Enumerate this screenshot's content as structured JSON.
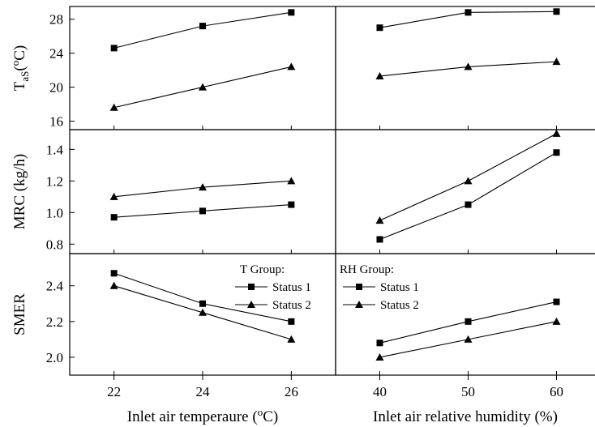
{
  "chart_data": [
    {
      "type": "line",
      "panel": "top-left",
      "ylabel": "T_aS(°C)",
      "x": [
        22,
        24,
        26
      ],
      "xlim": [
        21,
        27
      ],
      "ylim": [
        15,
        29.5
      ],
      "yticks": [
        16,
        20,
        24,
        28
      ],
      "series": [
        {
          "marker": "square",
          "values": [
            24.6,
            27.2,
            28.8
          ]
        },
        {
          "marker": "triangle",
          "values": [
            17.6,
            20.0,
            22.4
          ]
        }
      ]
    },
    {
      "type": "line",
      "panel": "top-right",
      "x": [
        40,
        50,
        60
      ],
      "xlim": [
        35,
        65
      ],
      "ylim": [
        15,
        29.5
      ],
      "series": [
        {
          "marker": "square",
          "values": [
            27.0,
            28.8,
            28.9
          ]
        },
        {
          "marker": "triangle",
          "values": [
            21.3,
            22.4,
            23.0
          ]
        }
      ]
    },
    {
      "type": "line",
      "panel": "middle-left",
      "ylabel": "MRC (kg/h)",
      "x": [
        22,
        24,
        26
      ],
      "xlim": [
        21,
        27
      ],
      "ylim": [
        0.74,
        1.525
      ],
      "yticks": [
        0.8,
        1.0,
        1.2,
        1.4
      ],
      "series": [
        {
          "marker": "square",
          "values": [
            0.97,
            1.01,
            1.05
          ]
        },
        {
          "marker": "triangle",
          "values": [
            1.1,
            1.16,
            1.2
          ]
        }
      ]
    },
    {
      "type": "line",
      "panel": "middle-right",
      "x": [
        40,
        50,
        60
      ],
      "xlim": [
        35,
        65
      ],
      "ylim": [
        0.74,
        1.525
      ],
      "series": [
        {
          "marker": "square",
          "values": [
            0.83,
            1.05,
            1.38
          ]
        },
        {
          "marker": "triangle",
          "values": [
            0.95,
            1.2,
            1.5
          ]
        }
      ]
    },
    {
      "type": "line",
      "panel": "bottom-left",
      "ylabel": "SMER",
      "xlabel": "Inlet air temperaure (°C)",
      "x": [
        22,
        24,
        26
      ],
      "xticks": [
        22,
        24,
        26
      ],
      "xlim": [
        21,
        27
      ],
      "ylim": [
        1.9,
        2.58
      ],
      "yticks": [
        2.0,
        2.2,
        2.4
      ],
      "legend": {
        "title": "T Group:",
        "placement": "top-right"
      },
      "series": [
        {
          "name": "Status 1",
          "marker": "square",
          "values": [
            2.47,
            2.3,
            2.2
          ]
        },
        {
          "name": "Status 2",
          "marker": "triangle",
          "values": [
            2.4,
            2.25,
            2.1
          ]
        }
      ]
    },
    {
      "type": "line",
      "panel": "bottom-right",
      "xlabel": "Inlet air relative humidity (%)",
      "x": [
        40,
        50,
        60
      ],
      "xticks": [
        40,
        50,
        60
      ],
      "xlim": [
        35,
        65
      ],
      "ylim": [
        1.9,
        2.58
      ],
      "legend": {
        "title": "RH Group:",
        "placement": "top-left"
      },
      "series": [
        {
          "name": "Status 1",
          "marker": "square",
          "values": [
            2.08,
            2.2,
            2.31
          ]
        },
        {
          "name": "Status 2",
          "marker": "triangle",
          "values": [
            2.0,
            2.1,
            2.2
          ]
        }
      ]
    }
  ]
}
